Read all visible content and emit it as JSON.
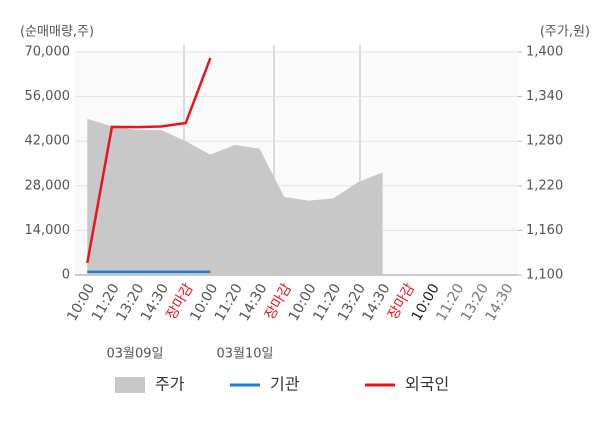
{
  "chart_data": {
    "type": "line",
    "ylabel": "(순매매량,주)",
    "y2label": "(주가,원)",
    "categories": [
      "10:00",
      "11:20",
      "13:20",
      "14:30",
      "장마감",
      "10:00",
      "11:20",
      "14:30",
      "장마감",
      "10:00",
      "11:20",
      "13:20",
      "14:30",
      "장마감",
      "10:00",
      "11:20",
      "13:20",
      "14:30"
    ],
    "category_colors": [
      "#555555",
      "#555555",
      "#555555",
      "#555555",
      "#e8141e",
      "#555555",
      "#555555",
      "#555555",
      "#e8141e",
      "#555555",
      "#555555",
      "#555555",
      "#555555",
      "#e8141e",
      "#222222",
      "#777777",
      "#777777",
      "#777777"
    ],
    "dates": [
      "03월09일",
      "03월10일"
    ],
    "series": [
      {
        "name": "주가",
        "color": "#c8c8c8",
        "kind": "area",
        "axis": "y2",
        "values": [
          1310,
          1300,
          1295,
          1295,
          1280,
          1262,
          1275,
          1270,
          1205,
          1200,
          1203,
          1225,
          1238,
          null,
          null,
          null,
          null,
          null
        ]
      },
      {
        "name": "기관",
        "color": "#1a7fd4",
        "kind": "line",
        "values": [
          1000,
          1000,
          1000,
          1000,
          1000,
          1000,
          null,
          null,
          null,
          null,
          null,
          null,
          null,
          null,
          null,
          null,
          null,
          null
        ]
      },
      {
        "name": "외국인",
        "color": "#e8141e",
        "kind": "line",
        "values": [
          3800,
          46500,
          46400,
          46600,
          47700,
          68100,
          null,
          null,
          null,
          null,
          null,
          null,
          null,
          null,
          null,
          null,
          null,
          null
        ]
      }
    ],
    "ylim": [
      0,
      70000
    ],
    "yticks": [
      0,
      {
        "value": 14000,
        "label": "14,000"
      },
      {
        "value": 28000,
        "label": "28,000"
      },
      {
        "value": 42000,
        "label": "42,000"
      },
      {
        "value": 56000,
        "label": "56,000"
      },
      {
        "value": 70000,
        "label": "70,000"
      }
    ],
    "y2lim": [
      1100,
      1400
    ],
    "y2ticks": [
      {
        "value": 1100,
        "label": "1,100"
      },
      {
        "value": 1160,
        "label": "1,160"
      },
      {
        "value": 1220,
        "label": "1,220"
      },
      {
        "value": 1280,
        "label": "1,280"
      },
      {
        "value": 1340,
        "label": "1,340"
      },
      {
        "value": 1400,
        "label": "1,400"
      }
    ],
    "grid": true,
    "legend": "bottom"
  }
}
